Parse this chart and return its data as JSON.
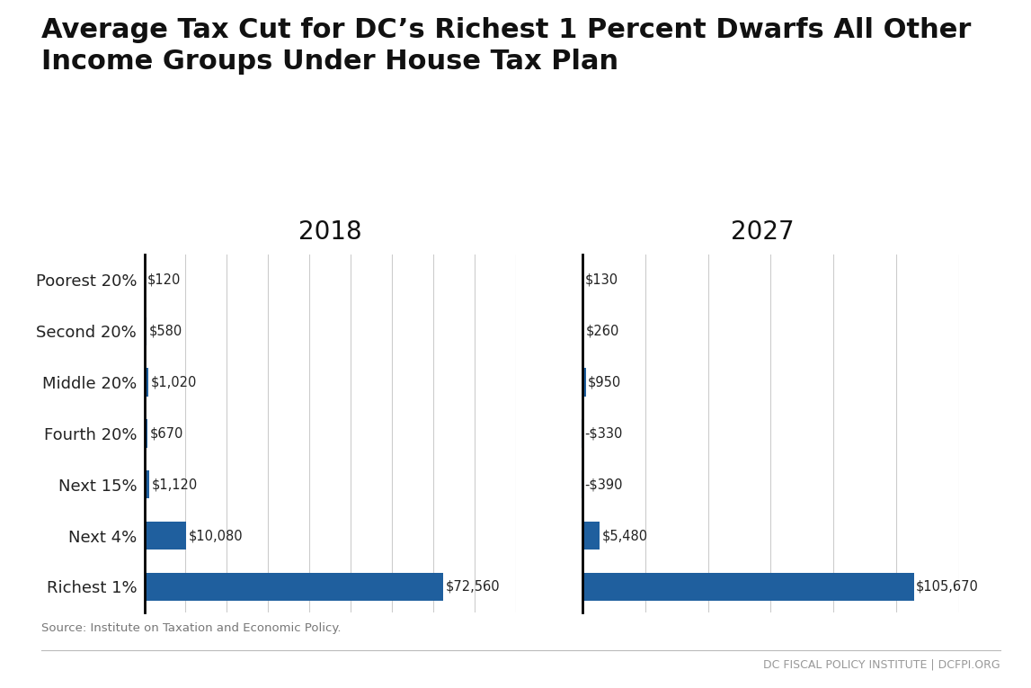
{
  "title_line1": "Average Tax Cut for DC’s Richest 1 Percent Dwarfs All Other",
  "title_line2": "Income Groups Under House Tax Plan",
  "categories": [
    "Poorest 20%",
    "Second 20%",
    "Middle 20%",
    "Fourth 20%",
    "Next 15%",
    "Next 4%",
    "Richest 1%"
  ],
  "values_2018": [
    120,
    580,
    1020,
    670,
    1120,
    10080,
    72560
  ],
  "values_2027": [
    130,
    260,
    950,
    -330,
    -390,
    5480,
    105670
  ],
  "labels_2018": [
    "$120",
    "$580",
    "$1,020",
    "$670",
    "$1,120",
    "$10,080",
    "$72,560"
  ],
  "labels_2027": [
    "$130",
    "$260",
    "$950",
    "-$330",
    "-$390",
    "$5,480",
    "$105,670"
  ],
  "bar_color": "#1f5f9e",
  "background_color": "#ffffff",
  "title_fontsize": 22,
  "source_text": "Source: Institute on Taxation and Economic Policy.",
  "footer_text": "DC FISCAL POLICY INSTITUTE | DCFPI.ORG",
  "year_2018": "2018",
  "year_2027": "2027"
}
